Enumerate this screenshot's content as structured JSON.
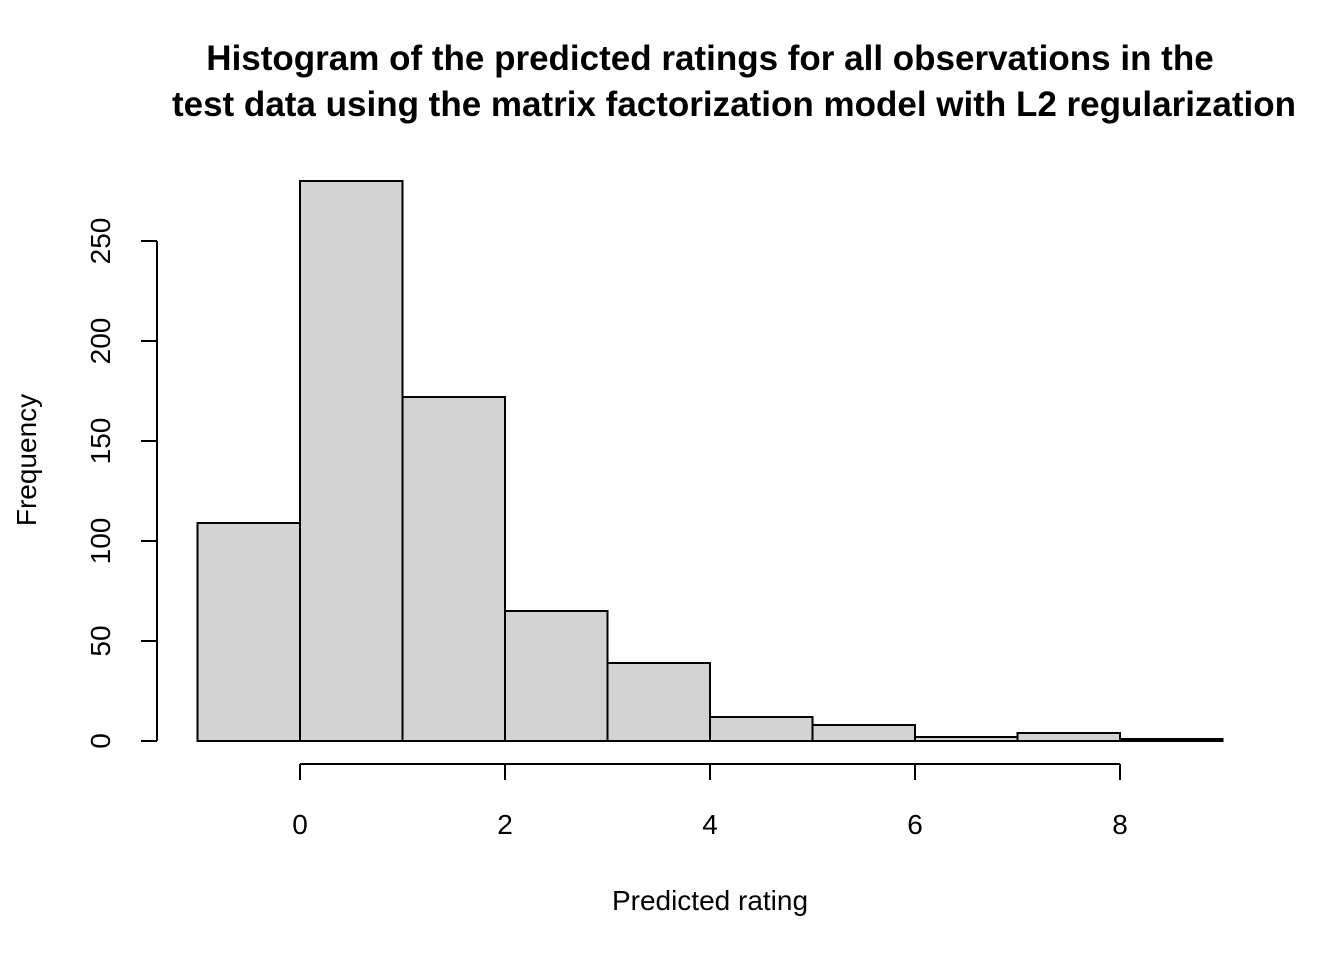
{
  "chart_data": {
    "type": "bar",
    "title_lines": [
      "Histogram of the predicted ratings for all observations in the",
      "test data using the matrix factorization model with L2 regularization"
    ],
    "xlabel": "Predicted rating",
    "ylabel": "Frequency",
    "bins": [
      {
        "start": -1,
        "end": 0,
        "count": 109
      },
      {
        "start": 0,
        "end": 1,
        "count": 280
      },
      {
        "start": 1,
        "end": 2,
        "count": 172
      },
      {
        "start": 2,
        "end": 3,
        "count": 65
      },
      {
        "start": 3,
        "end": 4,
        "count": 39
      },
      {
        "start": 4,
        "end": 5,
        "count": 12
      },
      {
        "start": 5,
        "end": 6,
        "count": 8
      },
      {
        "start": 6,
        "end": 7,
        "count": 2
      },
      {
        "start": 7,
        "end": 8,
        "count": 4
      },
      {
        "start": 8,
        "end": 9,
        "count": 1
      }
    ],
    "x_ticks": [
      "0",
      "2",
      "4",
      "6",
      "8"
    ],
    "y_ticks": [
      "0",
      "50",
      "100",
      "150",
      "200",
      "250"
    ],
    "xlim": [
      -1,
      9
    ],
    "ylim": [
      0,
      280
    ],
    "grid": false,
    "legend": "none",
    "colors": {
      "bar_fill": "#d3d3d3",
      "bar_stroke": "#000000"
    }
  }
}
